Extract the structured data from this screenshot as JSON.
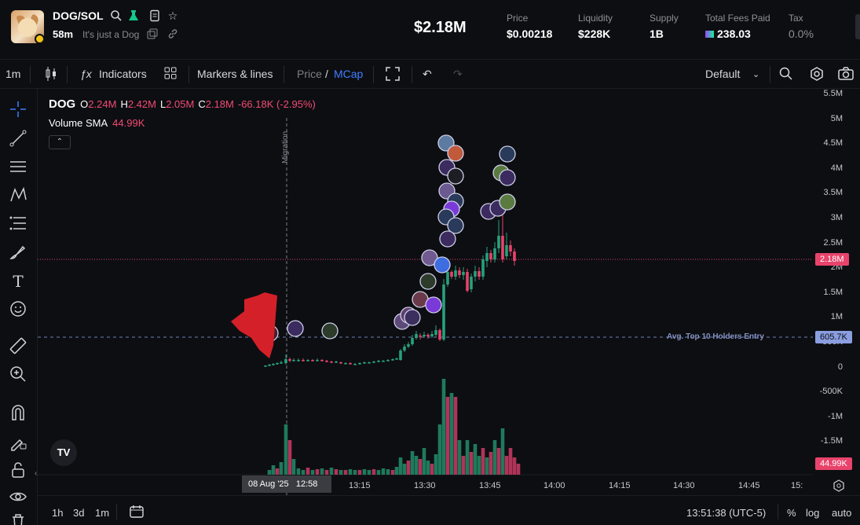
{
  "header": {
    "pair": "DOG/SOL",
    "age": "58m",
    "tagline": "It's just a Dog",
    "market_cap": "$2.18M",
    "stats": [
      {
        "label": "Price",
        "value": "$0.00218"
      },
      {
        "label": "Liquidity",
        "value": "$228K"
      },
      {
        "label": "Supply",
        "value": "1B"
      },
      {
        "label": "Total Fees Paid",
        "value": "238.03"
      },
      {
        "label": "Tax",
        "value": "0.0%"
      }
    ]
  },
  "toolbar": {
    "interval": "1m",
    "indicators": "Indicators",
    "markers": "Markers & lines",
    "price": "Price",
    "slash": "/",
    "mcap": "MCap",
    "layout": "Default"
  },
  "legend": {
    "symbol": "DOG",
    "o_label": "O",
    "o": "2.24M",
    "h_label": "H",
    "h": "2.42M",
    "l_label": "L",
    "l": "2.05M",
    "c_label": "C",
    "c": "2.18M",
    "change": "-66.18K (-2.95%)",
    "volume_label": "Volume SMA",
    "volume_value": "44.99K"
  },
  "annotations": {
    "migration": "Migration",
    "avg_entry": "Avg. Top 10 Holders Entry",
    "avg_entry_value": "605.7K",
    "last_price": "2.18M",
    "last_volume": "44.99K"
  },
  "chart_data": {
    "type": "candlestick",
    "y_ticks": [
      "5.5M",
      "5M",
      "4.5M",
      "4M",
      "3.5M",
      "3M",
      "2.5M",
      "2M",
      "1.5M",
      "1M",
      "500K",
      "0",
      "-500K",
      "-1M",
      "-1.5M"
    ],
    "x_ticks": [
      "13:15",
      "13:30",
      "13:45",
      "14:00",
      "14:15",
      "14:30",
      "14:45",
      "15:"
    ],
    "crosshair_date": "08 Aug '25",
    "crosshair_time": "12:58",
    "colors": {
      "up": "#26a17b",
      "down": "#e8436b"
    }
  },
  "bottom": {
    "ranges": [
      "1h",
      "3d",
      "1m"
    ],
    "clock": "13:51:38 (UTC-5)",
    "pct": "%",
    "log": "log",
    "auto": "auto"
  }
}
